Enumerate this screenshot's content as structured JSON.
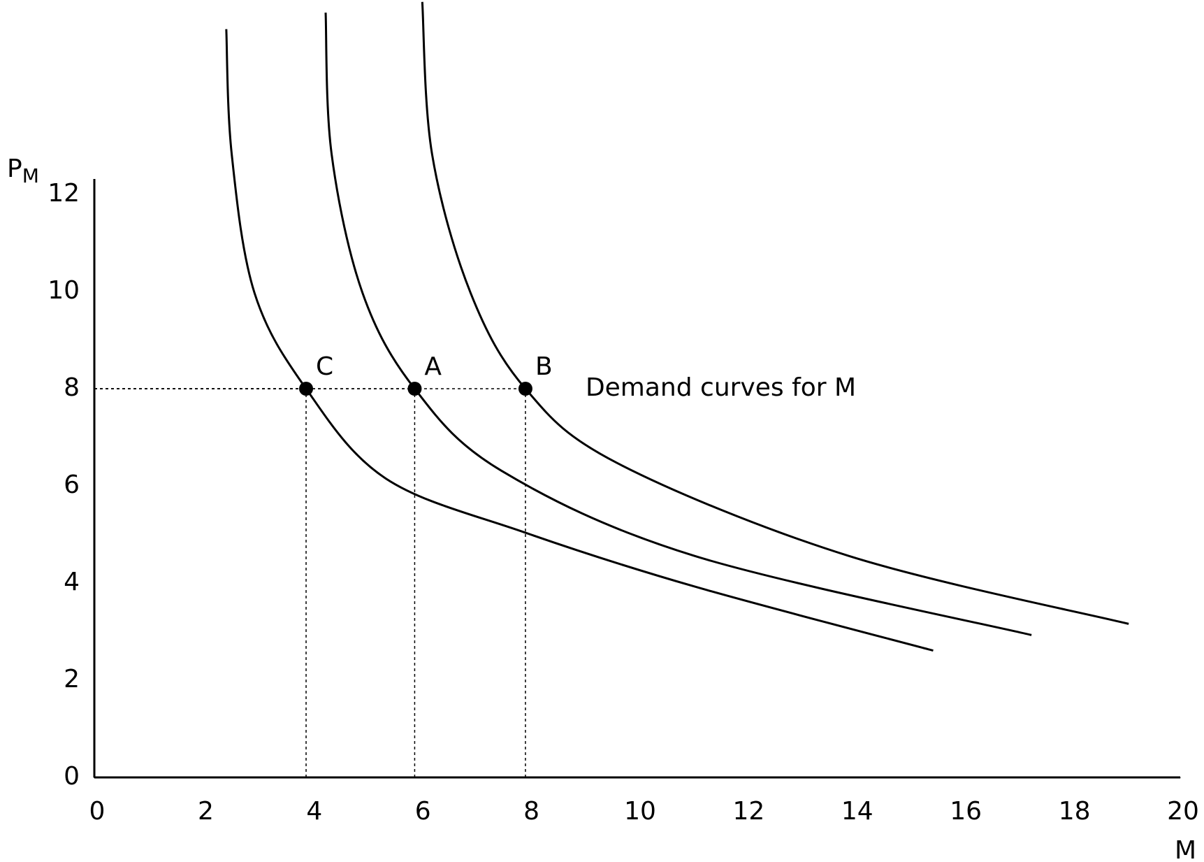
{
  "chart_data": {
    "type": "line",
    "x_label": "M",
    "y_label": {
      "text": "P",
      "sub": "M"
    },
    "annotation": "Demand curves for M",
    "xlim": [
      0,
      20
    ],
    "xticks": [
      0,
      2,
      4,
      6,
      8,
      10,
      12,
      14,
      16,
      18,
      20
    ],
    "ylim": [
      0,
      16
    ],
    "yticks": [
      0,
      2,
      4,
      6,
      8,
      10,
      12
    ],
    "series": [
      {
        "color": "#000000",
        "x": [
          2.43,
          2.53,
          2.95,
          3.9,
          5.37,
          7.93,
          11.05,
          15.45
        ],
        "values": [
          15.4,
          12.83,
          9.97,
          8,
          6.15,
          5.04,
          3.93,
          2.61
        ]
      },
      {
        "color": "#000000",
        "x": [
          4.26,
          4.37,
          4.94,
          5.9,
          7.5,
          11.05,
          17.26
        ],
        "values": [
          15.74,
          12.83,
          9.97,
          8,
          6.31,
          4.56,
          2.93
        ]
      },
      {
        "color": "#000000",
        "x": [
          6.04,
          6.22,
          6.93,
          7.94,
          9.63,
          13.89,
          19.05
        ],
        "values": [
          15.96,
          12.83,
          9.97,
          8,
          6.47,
          4.56,
          3.16
        ]
      }
    ],
    "points": [
      {
        "label": "C",
        "x": 3.9,
        "y": 8
      },
      {
        "label": "A",
        "x": 5.9,
        "y": 8
      },
      {
        "label": "B",
        "x": 7.94,
        "y": 8
      }
    ]
  }
}
